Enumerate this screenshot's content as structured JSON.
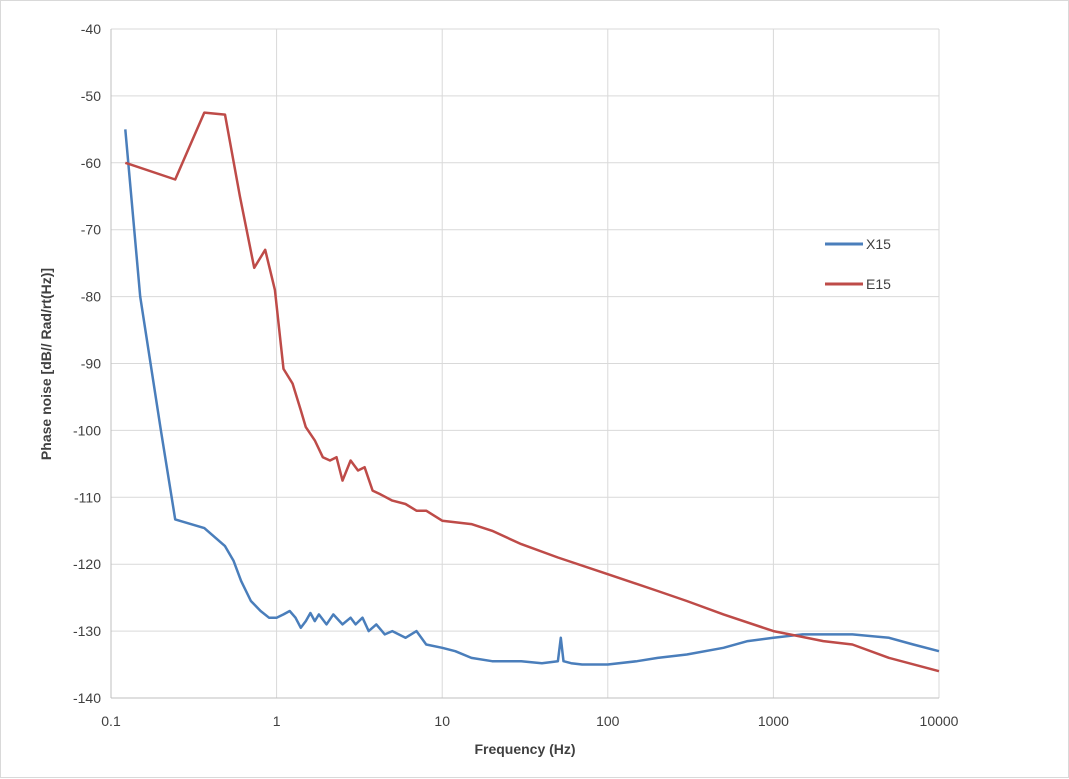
{
  "chart_data": {
    "type": "line",
    "title": "",
    "xlabel": "Frequency (Hz)",
    "ylabel": "Phase noise [dB// Rad/rt(Hz)]",
    "xscale": "log",
    "xlim": [
      0.1,
      10000
    ],
    "ylim": [
      -140,
      -40
    ],
    "x_ticks": [
      "0.1",
      "1",
      "10",
      "100",
      "1000",
      "10000"
    ],
    "y_ticks": [
      "-40",
      "-50",
      "-60",
      "-70",
      "-80",
      "-90",
      "-100",
      "-110",
      "-120",
      "-130",
      "-140"
    ],
    "grid": true,
    "legend_position": "right",
    "series": [
      {
        "name": "X15",
        "color": "#4a7ebb",
        "x": [
          0.122,
          0.15,
          0.2,
          0.244,
          0.366,
          0.488,
          0.55,
          0.61,
          0.7,
          0.8,
          0.9,
          1.0,
          1.1,
          1.2,
          1.3,
          1.4,
          1.5,
          1.6,
          1.7,
          1.8,
          2.0,
          2.2,
          2.5,
          2.8,
          3.0,
          3.3,
          3.6,
          4.0,
          4.5,
          5,
          6,
          7,
          8,
          10,
          12,
          15,
          20,
          30,
          40,
          50,
          52,
          54,
          60,
          70,
          100,
          150,
          200,
          300,
          500,
          700,
          1000,
          1500,
          2000,
          3000,
          5000,
          7000,
          10000
        ],
        "y": [
          -55,
          -80,
          -100,
          -113.3,
          -114.6,
          -117.3,
          -119.5,
          -122.5,
          -125.5,
          -127,
          -128,
          -128,
          -127.5,
          -127,
          -128,
          -129.5,
          -128.5,
          -127.3,
          -128.5,
          -127.5,
          -129,
          -127.5,
          -129,
          -128,
          -129,
          -128,
          -130,
          -129,
          -130.5,
          -130,
          -131,
          -130,
          -132,
          -132.5,
          -133,
          -134,
          -134.5,
          -134.5,
          -134.8,
          -134.5,
          -131,
          -134.5,
          -134.8,
          -135,
          -135,
          -134.5,
          -134,
          -133.5,
          -132.5,
          -131.5,
          -131,
          -130.5,
          -130.5,
          -130.5,
          -131,
          -132,
          -133
        ]
      },
      {
        "name": "E15",
        "color": "#be4b48",
        "x": [
          0.122,
          0.244,
          0.366,
          0.488,
          0.6,
          0.732,
          0.854,
          0.976,
          1.1,
          1.25,
          1.4,
          1.5,
          1.7,
          1.9,
          2.1,
          2.3,
          2.5,
          2.8,
          3.1,
          3.4,
          3.8,
          4.2,
          5,
          6,
          7,
          8,
          10,
          15,
          20,
          30,
          50,
          100,
          200,
          300,
          500,
          1000,
          2000,
          3000,
          5000,
          10000
        ],
        "y": [
          -60,
          -62.5,
          -52.5,
          -52.8,
          -65,
          -75.7,
          -73,
          -79,
          -90.8,
          -93,
          -97,
          -99.5,
          -101.5,
          -104,
          -104.5,
          -104,
          -107.5,
          -104.5,
          -106,
          -105.5,
          -109,
          -109.5,
          -110.5,
          -111,
          -112,
          -112,
          -113.5,
          -114,
          -115,
          -117,
          -119,
          -121.5,
          -124,
          -125.5,
          -127.5,
          -130,
          -131.5,
          -132,
          -134,
          -136
        ]
      }
    ]
  }
}
